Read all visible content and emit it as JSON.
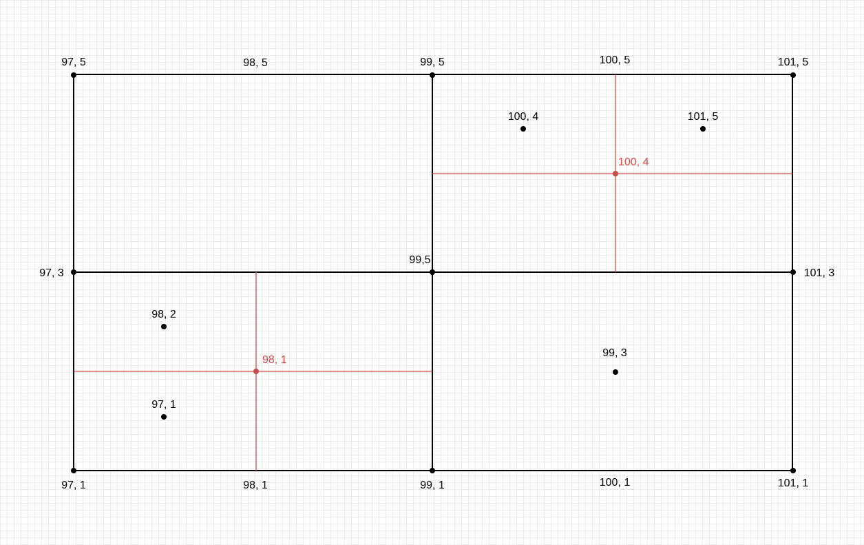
{
  "colors": {
    "grid_line": "#000000",
    "point": "#000000",
    "highlight": "#d14d4d",
    "label": "#000000"
  },
  "labels": {
    "p_97_5": "97, 5",
    "p_98_5": "98, 5",
    "p_99_5_top": "99, 5",
    "p_100_5": "100, 5",
    "p_101_5_top": "101, 5",
    "p_100_4": "100, 4",
    "p_101_5_inner": "101, 5",
    "r_100_4": "100, 4",
    "p_97_3": "97, 3",
    "p_99_5_mid": "99,5",
    "p_101_3": "101, 3",
    "p_98_2": "98, 2",
    "r_98_1": "98, 1",
    "p_99_3": "99, 3",
    "p_97_1_inner": "97, 1",
    "p_97_1": "97, 1",
    "p_98_1": "98, 1",
    "p_99_1": "99, 1",
    "p_100_1": "100, 1",
    "p_101_1": "101, 1"
  }
}
